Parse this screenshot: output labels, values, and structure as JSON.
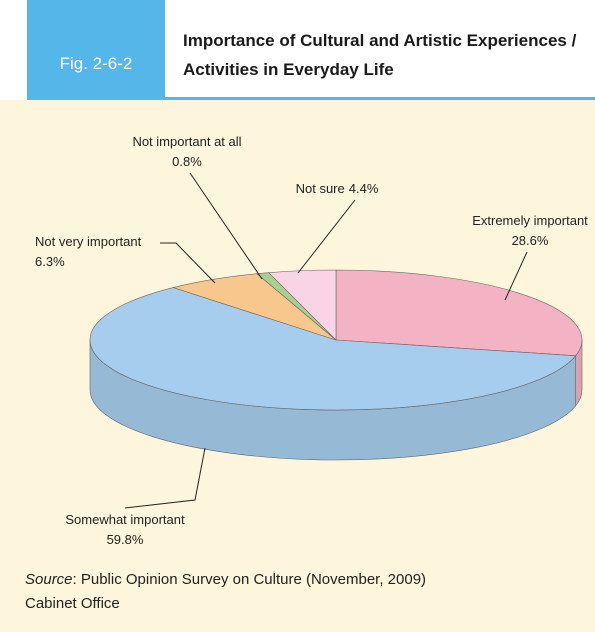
{
  "chart_data": {
    "type": "pie",
    "figure": "Fig. 2-6-2",
    "title": "Importance of Cultural and Artistic Experiences / Activities in Everyday Life",
    "categories": [
      "Extremely important",
      "Somewhat important",
      "Not very important",
      "Not important at all",
      "Not sure"
    ],
    "values": [
      28.6,
      59.8,
      6.3,
      0.8,
      4.4
    ],
    "value_labels": [
      "28.6%",
      "59.8%",
      "6.3%",
      "0.8%",
      "4.4%"
    ],
    "colors": [
      "#f4b3c5",
      "#a7cdee",
      "#f8c78e",
      "#a9d18e",
      "#f9d3e6"
    ],
    "source": {
      "label": "Source",
      "text": ": Public Opinion Survey on Culture (November, 2009)",
      "org": "Cabinet Office"
    }
  }
}
